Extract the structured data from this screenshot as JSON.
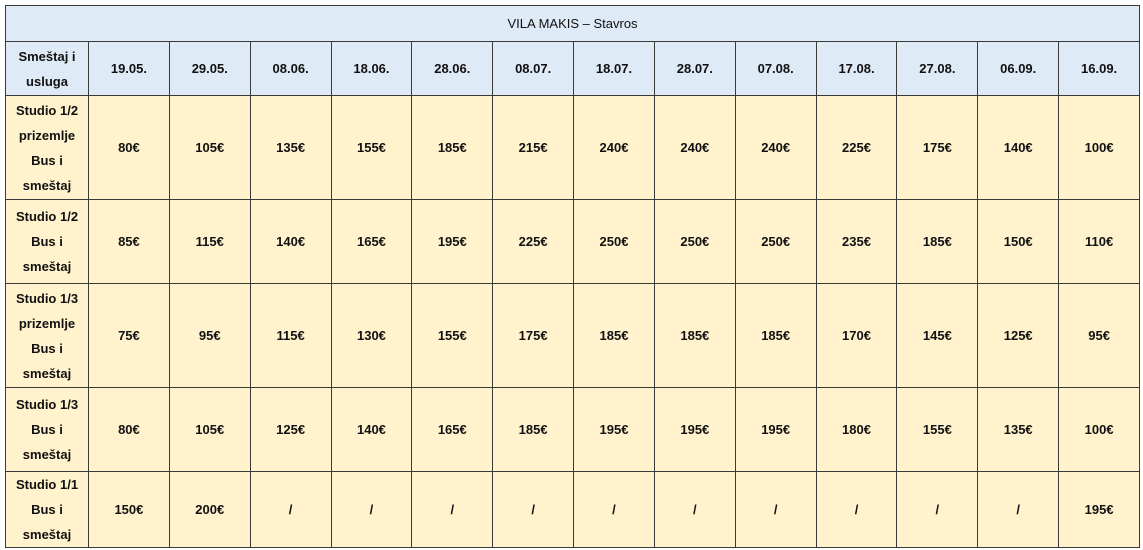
{
  "table": {
    "title": "VILA MAKIS – Stavros",
    "header": [
      "Smeštaj i usluga",
      "19.05.",
      "29.05.",
      "08.06.",
      "18.06.",
      "28.06.",
      "08.07.",
      "18.07.",
      "28.07.",
      "07.08.",
      "17.08.",
      "27.08.",
      "06.09.",
      "16.09."
    ],
    "rows": [
      [
        "Studio 1/2 prizemlje Bus i smeštaj",
        "80€",
        "105€",
        "135€",
        "155€",
        "185€",
        "215€",
        "240€",
        "240€",
        "240€",
        "225€",
        "175€",
        "140€",
        "100€"
      ],
      [
        "Studio 1/2 Bus i smeštaj",
        "85€",
        "115€",
        "140€",
        "165€",
        "195€",
        "225€",
        "250€",
        "250€",
        "250€",
        "235€",
        "185€",
        "150€",
        "110€"
      ],
      [
        "Studio 1/3 prizemlje Bus i smeštaj",
        "75€",
        "95€",
        "115€",
        "130€",
        "155€",
        "175€",
        "185€",
        "185€",
        "185€",
        "170€",
        "145€",
        "125€",
        "95€"
      ],
      [
        "Studio 1/3 Bus i smeštaj",
        "80€",
        "105€",
        "125€",
        "140€",
        "165€",
        "185€",
        "195€",
        "195€",
        "195€",
        "180€",
        "155€",
        "135€",
        "100€"
      ],
      [
        "Studio 1/1 Bus i smeštaj",
        "150€",
        "200€",
        "/",
        "/",
        "/",
        "/",
        "/",
        "/",
        "/",
        "/",
        "/",
        "/",
        "195€"
      ]
    ]
  }
}
